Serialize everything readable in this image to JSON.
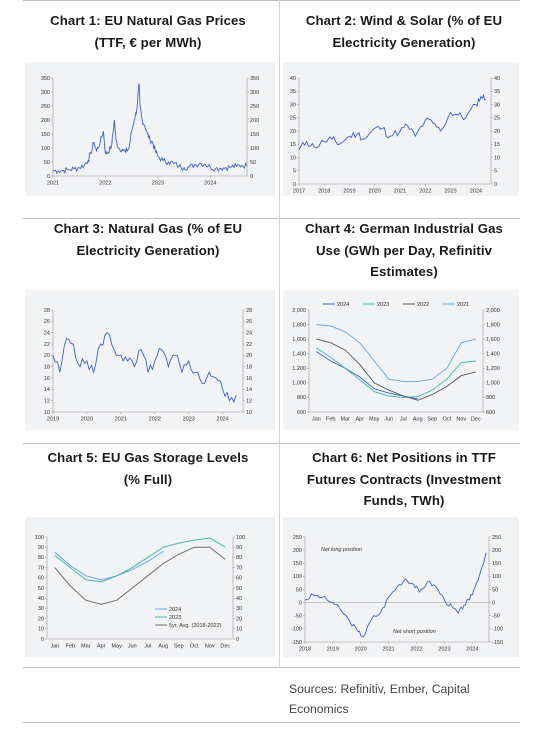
{
  "titles": {
    "c1": [
      "Chart 1: EU Natural Gas Prices",
      "(TTF, € per MWh)"
    ],
    "c2": [
      "Chart 2: Wind & Solar (% of EU",
      "Electricity Generation)"
    ],
    "c3": [
      "Chart 3: Natural Gas (% of EU",
      "Electricity Generation)"
    ],
    "c4": [
      "Chart 4: German Industrial Gas",
      "Use (GWh per Day, Refinitiv",
      "Estimates)"
    ],
    "c5": [
      "Chart 5: EU Gas Storage Levels",
      "(% Full)"
    ],
    "c6": [
      "Chart 6: Net Positions in TTF",
      "Futures Contracts (Investment",
      "Funds, TWh)"
    ]
  },
  "sources": "Sources: Refinitiv, Ember, Capital Economics",
  "colors": {
    "line_main": "#3b62c4",
    "c4_2024": "#3b62c4",
    "c4_2023": "#3fb8b0",
    "c4_2022": "#555555",
    "c4_2021": "#5aa6e8",
    "c5_2024": "#6aa6e6",
    "c5_2023": "#3fb8b0",
    "c5_avg": "#6e6e6e"
  },
  "chart_data": [
    {
      "id": "c1",
      "type": "line",
      "title": "Chart 1: EU Natural Gas Prices (TTF, € per MWh)",
      "ylim": [
        0,
        350
      ],
      "yticks": [
        0,
        50,
        100,
        150,
        200,
        250,
        300,
        350
      ],
      "xlim": [
        2021.0,
        2024.7
      ],
      "xticks": [
        2021,
        2022,
        2023,
        2024
      ],
      "series": [
        {
          "x": [
            2021.0,
            2021.1,
            2021.2,
            2021.3,
            2021.4,
            2021.5,
            2021.6,
            2021.67,
            2021.72,
            2021.78,
            2021.83,
            2021.9,
            2021.96,
            2022.0,
            2022.05,
            2022.12,
            2022.17,
            2022.2,
            2022.25,
            2022.32,
            2022.38,
            2022.45,
            2022.5,
            2022.55,
            2022.6,
            2022.64,
            2022.66,
            2022.7,
            2022.75,
            2022.8,
            2022.85,
            2022.9,
            2022.95,
            2023.0,
            2023.1,
            2023.2,
            2023.3,
            2023.4,
            2023.5,
            2023.6,
            2023.7,
            2023.8,
            2023.9,
            2024.0,
            2024.1,
            2024.2,
            2024.3,
            2024.4,
            2024.5,
            2024.6,
            2024.7
          ],
          "y": [
            20,
            18,
            20,
            22,
            26,
            30,
            40,
            55,
            80,
            120,
            90,
            120,
            160,
            80,
            85,
            110,
            200,
            130,
            100,
            95,
            85,
            100,
            160,
            200,
            240,
            330,
            250,
            200,
            180,
            150,
            130,
            120,
            90,
            70,
            55,
            50,
            45,
            35,
            30,
            32,
            40,
            45,
            42,
            32,
            27,
            28,
            30,
            32,
            35,
            38,
            36
          ]
        }
      ]
    },
    {
      "id": "c2",
      "type": "line",
      "title": "Chart 2: Wind & Solar (% of EU Electricity Generation)",
      "ylim": [
        0,
        40
      ],
      "yticks": [
        0,
        5,
        10,
        15,
        20,
        25,
        30,
        35,
        40
      ],
      "xlim": [
        2017.0,
        2024.6
      ],
      "xticks": [
        2017,
        2018,
        2019,
        2020,
        2021,
        2022,
        2023,
        2024
      ],
      "series": [
        {
          "x": [
            2017.0,
            2017.3,
            2017.6,
            2018.0,
            2018.3,
            2018.6,
            2019.0,
            2019.3,
            2019.6,
            2020.0,
            2020.3,
            2020.6,
            2021.0,
            2021.3,
            2021.6,
            2022.0,
            2022.3,
            2022.6,
            2023.0,
            2023.3,
            2023.6,
            2024.0,
            2024.2,
            2024.4
          ],
          "y": [
            13,
            16,
            14,
            16,
            17,
            15,
            18,
            19,
            17,
            21,
            21,
            18,
            20,
            22,
            18,
            24,
            23,
            20,
            27,
            26,
            25,
            30,
            33,
            32
          ]
        }
      ]
    },
    {
      "id": "c3",
      "type": "line",
      "title": "Chart 3: Natural Gas (% of EU Electricity Generation)",
      "ylim": [
        10,
        28
      ],
      "yticks": [
        10,
        12,
        14,
        16,
        18,
        20,
        22,
        24,
        26,
        28
      ],
      "xlim": [
        2019.0,
        2024.6
      ],
      "xticks": [
        2019,
        2020,
        2021,
        2022,
        2023,
        2024
      ],
      "series": [
        {
          "x": [
            2019.0,
            2019.2,
            2019.4,
            2019.6,
            2019.8,
            2020.0,
            2020.2,
            2020.4,
            2020.6,
            2020.8,
            2021.0,
            2021.2,
            2021.4,
            2021.6,
            2021.8,
            2022.0,
            2022.2,
            2022.4,
            2022.6,
            2022.8,
            2023.0,
            2023.2,
            2023.4,
            2023.6,
            2023.8,
            2024.0,
            2024.2,
            2024.4
          ],
          "y": [
            20,
            17,
            23,
            22,
            18,
            19,
            17,
            22,
            24,
            21,
            20,
            19,
            18,
            21,
            17,
            19,
            21,
            18,
            20,
            17,
            19,
            17,
            15,
            17,
            16,
            14,
            12,
            13
          ]
        }
      ]
    },
    {
      "id": "c4",
      "type": "line",
      "title": "Chart 4: German Industrial Gas Use (GWh per Day, Refinitiv Estimates)",
      "ylim": [
        600,
        2000
      ],
      "yticks": [
        600,
        800,
        1000,
        1200,
        1400,
        1600,
        1800,
        2000
      ],
      "categories": [
        "Jan",
        "Feb",
        "Mar",
        "Apr",
        "May",
        "Jun",
        "Jul",
        "Aug",
        "Sep",
        "Oct",
        "Nov",
        "Dec"
      ],
      "legend": [
        "2024",
        "2023",
        "2022",
        "2021"
      ],
      "series": [
        {
          "name": "2024",
          "values": [
            1430,
            1300,
            1200,
            1080,
            920,
            860,
            820,
            780,
            null,
            null,
            null,
            null
          ]
        },
        {
          "name": "2023",
          "values": [
            1480,
            1350,
            1200,
            1040,
            880,
            820,
            800,
            810,
            900,
            1050,
            1280,
            1300
          ]
        },
        {
          "name": "2022",
          "values": [
            1600,
            1550,
            1450,
            1250,
            1000,
            900,
            820,
            760,
            840,
            950,
            1100,
            1150
          ]
        },
        {
          "name": "2021",
          "values": [
            1800,
            1780,
            1700,
            1550,
            1300,
            1050,
            1020,
            1020,
            1050,
            1200,
            1550,
            1600
          ]
        }
      ]
    },
    {
      "id": "c5",
      "type": "line",
      "title": "Chart 5: EU Gas Storage Levels (% Full)",
      "ylim": [
        0,
        100
      ],
      "yticks": [
        0,
        10,
        20,
        30,
        40,
        50,
        60,
        70,
        80,
        90,
        100
      ],
      "categories": [
        "Jan",
        "Feb",
        "Mar",
        "Apr",
        "May",
        "Jun",
        "Jul",
        "Aug",
        "Sep",
        "Oct",
        "Nov",
        "Dec"
      ],
      "legend": [
        "2024",
        "2023",
        "5yr. Avg. (2018-2022)"
      ],
      "series": [
        {
          "name": "2024",
          "values": [
            85,
            72,
            62,
            58,
            62,
            68,
            76,
            86,
            null,
            null,
            null,
            null
          ]
        },
        {
          "name": "2023",
          "values": [
            82,
            70,
            58,
            56,
            62,
            70,
            80,
            90,
            94,
            97,
            99,
            90
          ]
        },
        {
          "name": "5yr. Avg. (2018-2022)",
          "values": [
            70,
            52,
            38,
            34,
            38,
            50,
            62,
            74,
            83,
            90,
            90,
            78
          ]
        }
      ]
    },
    {
      "id": "c6",
      "type": "line",
      "title": "Chart 6: Net Positions in TTF Futures Contracts (Investment Funds, TWh)",
      "ylim": [
        -150,
        250
      ],
      "yticks": [
        -150,
        -100,
        -50,
        0,
        50,
        100,
        150,
        200,
        250
      ],
      "xlim": [
        2018.0,
        2024.6
      ],
      "xticks": [
        2018,
        2019,
        2020,
        2021,
        2022,
        2023,
        2024
      ],
      "annotations": [
        "Net long position",
        "Net short position"
      ],
      "series": [
        {
          "x": [
            2018.0,
            2018.3,
            2018.6,
            2019.0,
            2019.3,
            2019.6,
            2019.9,
            2020.1,
            2020.4,
            2020.7,
            2021.0,
            2021.3,
            2021.6,
            2021.9,
            2022.1,
            2022.4,
            2022.7,
            2023.0,
            2023.3,
            2023.5,
            2023.7,
            2023.9,
            2024.1,
            2024.3,
            2024.5
          ],
          "y": [
            10,
            30,
            20,
            0,
            -30,
            -70,
            -110,
            -130,
            -60,
            -40,
            20,
            60,
            90,
            70,
            40,
            80,
            60,
            10,
            -20,
            -40,
            -10,
            10,
            60,
            120,
            190
          ]
        }
      ]
    }
  ]
}
